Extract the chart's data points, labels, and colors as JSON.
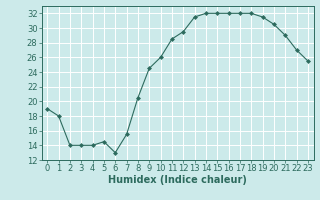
{
  "x": [
    0,
    1,
    2,
    3,
    4,
    5,
    6,
    7,
    8,
    9,
    10,
    11,
    12,
    13,
    14,
    15,
    16,
    17,
    18,
    19,
    20,
    21,
    22,
    23
  ],
  "y": [
    19,
    18,
    14,
    14,
    14,
    14.5,
    13,
    15.5,
    20.5,
    24.5,
    26,
    28.5,
    29.5,
    31.5,
    32,
    32,
    32,
    32,
    32,
    31.5,
    30.5,
    29,
    27,
    25.5
  ],
  "line_color": "#2d6b5e",
  "marker_color": "#2d6b5e",
  "background_color": "#cceaea",
  "grid_color": "#ffffff",
  "xlabel": "Humidex (Indice chaleur)",
  "ylim": [
    12,
    33
  ],
  "xlim": [
    -0.5,
    23.5
  ],
  "yticks": [
    12,
    14,
    16,
    18,
    20,
    22,
    24,
    26,
    28,
    30,
    32
  ],
  "xticks": [
    0,
    1,
    2,
    3,
    4,
    5,
    6,
    7,
    8,
    9,
    10,
    11,
    12,
    13,
    14,
    15,
    16,
    17,
    18,
    19,
    20,
    21,
    22,
    23
  ],
  "tick_font_size": 6,
  "label_font_size": 7
}
